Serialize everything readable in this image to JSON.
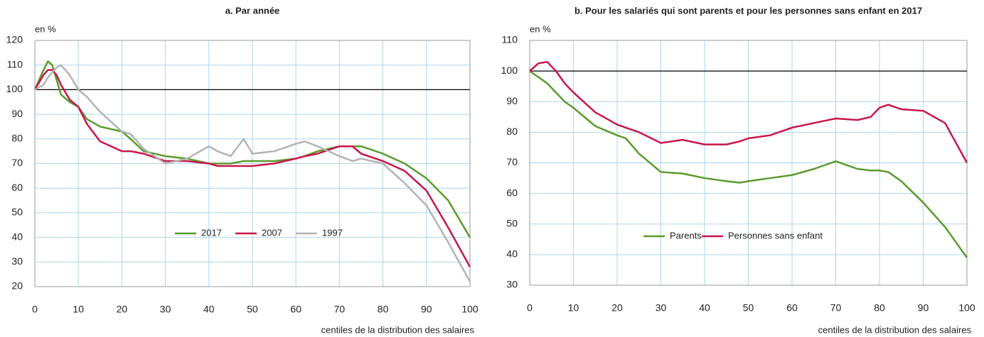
{
  "chart_data": [
    {
      "type": "line",
      "title": "a. Par année",
      "y_label": "en %",
      "x_label": "centiles de la distribution des salaires",
      "x": [
        0,
        2,
        3,
        4,
        5,
        6,
        8,
        10,
        12,
        15,
        20,
        22,
        25,
        30,
        35,
        40,
        42,
        45,
        48,
        50,
        55,
        60,
        62,
        65,
        70,
        73,
        75,
        80,
        85,
        90,
        95,
        100
      ],
      "series": [
        {
          "name": "2017",
          "color": "#5b9a2e",
          "values": [
            100,
            108,
            111.5,
            110,
            104,
            98,
            95,
            93,
            88,
            85,
            83,
            80,
            75,
            73,
            72,
            70,
            70,
            70,
            71,
            71,
            71,
            72,
            73,
            75,
            77,
            77,
            77,
            74,
            70,
            64,
            55,
            40
          ]
        },
        {
          "name": "2007",
          "color": "#c8174a",
          "values": [
            100,
            106,
            108,
            108,
            106,
            102,
            96,
            93,
            86,
            79,
            75,
            75,
            74,
            71,
            71,
            70,
            69,
            69,
            69,
            69,
            70,
            72,
            73,
            74,
            77,
            77,
            74,
            71,
            67,
            59,
            44,
            28
          ]
        },
        {
          "name": "1997",
          "color": "#b3b3b3",
          "values": [
            100,
            102,
            105,
            107,
            109,
            110,
            106,
            100,
            97,
            91,
            83,
            82,
            76,
            70,
            72,
            77,
            75,
            73,
            80,
            74,
            75,
            78,
            79,
            77,
            73,
            71,
            72,
            70,
            62,
            53,
            38,
            22
          ]
        }
      ],
      "xlim": [
        0,
        100
      ],
      "xticks": [
        0,
        10,
        20,
        30,
        40,
        50,
        60,
        70,
        80,
        90,
        100
      ],
      "ylim": [
        20,
        120
      ],
      "yticks": [
        20,
        30,
        40,
        50,
        60,
        70,
        80,
        90,
        100,
        110,
        120
      ],
      "reference_line": 100,
      "grid": true,
      "legend": "bottom"
    },
    {
      "type": "line",
      "title": "b. Pour les salariés qui sont parents et pour les personnes sans enfant en 2017",
      "y_label": "en %",
      "x_label": "centiles de la distribution des salaires",
      "x": [
        0,
        2,
        4,
        6,
        8,
        10,
        15,
        20,
        22,
        25,
        30,
        35,
        40,
        45,
        48,
        50,
        55,
        60,
        65,
        70,
        75,
        78,
        80,
        82,
        85,
        90,
        95,
        100
      ],
      "series": [
        {
          "name": "Parents",
          "color": "#5b9a2e",
          "values": [
            100,
            98,
            96,
            93,
            90,
            88,
            82,
            79,
            78,
            73,
            67,
            66.5,
            65,
            64,
            63.5,
            64,
            65,
            66,
            68,
            70.5,
            68,
            67.5,
            67.5,
            67,
            64,
            57,
            49,
            39
          ]
        },
        {
          "name": "Personnes sans enfant",
          "color": "#c8174a",
          "values": [
            100,
            102.5,
            103,
            100,
            96,
            93,
            86.5,
            82.5,
            81.5,
            80,
            76.5,
            77.5,
            76,
            76,
            77,
            78,
            79,
            81.5,
            83,
            84.5,
            84,
            85,
            88,
            89,
            87.5,
            87,
            83,
            70
          ]
        }
      ],
      "xlim": [
        0,
        100
      ],
      "xticks": [
        0,
        10,
        20,
        30,
        40,
        50,
        60,
        70,
        80,
        90,
        100
      ],
      "ylim": [
        30,
        110
      ],
      "yticks": [
        30,
        40,
        50,
        60,
        70,
        80,
        90,
        100,
        110
      ],
      "reference_line": 100,
      "grid": true,
      "legend": "bottom"
    }
  ]
}
